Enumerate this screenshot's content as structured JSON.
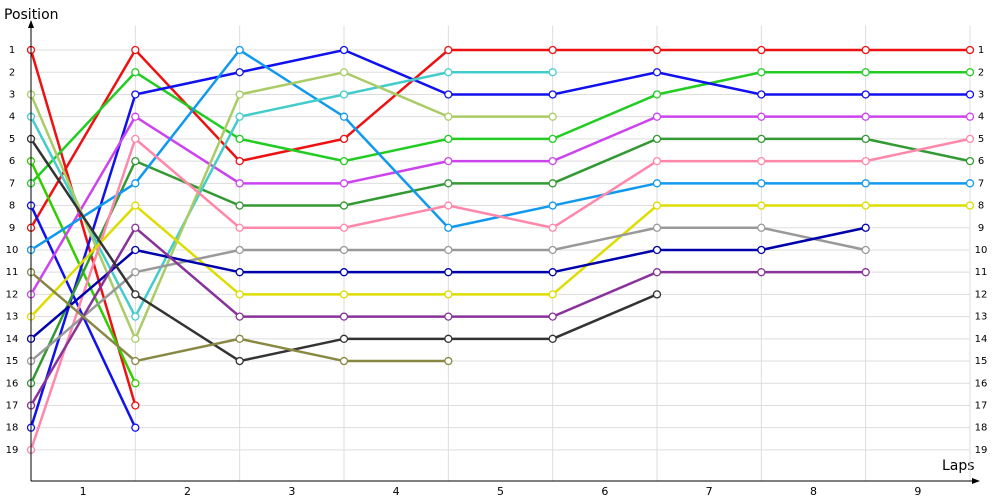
{
  "chart_data": {
    "type": "line",
    "y_title": "Position",
    "x_title": "Laps",
    "x": [
      0,
      1,
      2,
      3,
      4,
      5,
      6,
      7,
      8,
      9
    ],
    "xlim": [
      0,
      9
    ],
    "xticks": [
      {
        "value": 0.5,
        "label": "1"
      },
      {
        "value": 1.5,
        "label": "2"
      },
      {
        "value": 2.5,
        "label": "3"
      },
      {
        "value": 3.5,
        "label": "4"
      },
      {
        "value": 4.5,
        "label": "5"
      },
      {
        "value": 5.5,
        "label": "6"
      },
      {
        "value": 6.5,
        "label": "7"
      },
      {
        "value": 7.5,
        "label": "8"
      },
      {
        "value": 8.5,
        "label": "9"
      }
    ],
    "ylim": [
      20.4,
      -0.1
    ],
    "yticks": [
      1,
      2,
      3,
      4,
      5,
      6,
      7,
      8,
      9,
      10,
      11,
      12,
      13,
      14,
      15,
      16,
      17,
      18,
      19
    ],
    "grid": true,
    "series": [
      {
        "color": "#ee1111",
        "values": [
          9,
          1,
          6,
          5,
          1,
          1,
          1,
          1,
          1,
          1
        ]
      },
      {
        "color": "#ee1111",
        "values": [
          1,
          17,
          null,
          null,
          null,
          null,
          null,
          null,
          null,
          null
        ]
      },
      {
        "color": "#22cc22",
        "values": [
          7,
          2,
          5,
          6,
          5,
          5,
          3,
          2,
          2,
          2
        ]
      },
      {
        "color": "#33cc00",
        "values": [
          6,
          16,
          null,
          null,
          null,
          null,
          null,
          null,
          null,
          null
        ]
      },
      {
        "color": "#1111ee",
        "values": [
          18,
          3,
          2,
          1,
          3,
          3,
          2,
          3,
          3,
          3
        ]
      },
      {
        "color": "#1111ee",
        "values": [
          8,
          18,
          null,
          null,
          null,
          null,
          null,
          null,
          null,
          null
        ]
      },
      {
        "color": "#339933",
        "values": [
          16,
          6,
          8,
          8,
          7,
          7,
          5,
          5,
          5,
          6
        ]
      },
      {
        "color": "#cc44ee",
        "values": [
          12,
          4,
          7,
          7,
          6,
          6,
          4,
          4,
          4,
          4
        ]
      },
      {
        "color": "#1199ee",
        "values": [
          10,
          7,
          1,
          4,
          9,
          8,
          7,
          7,
          7,
          7
        ]
      },
      {
        "color": "#44cccc",
        "values": [
          4,
          13,
          4,
          3,
          2,
          2,
          null,
          null,
          null,
          null
        ]
      },
      {
        "color": "#aacc66",
        "values": [
          3,
          14,
          3,
          2,
          4,
          4,
          null,
          null,
          null,
          null
        ]
      },
      {
        "color": "#ff88aa",
        "values": [
          19,
          5,
          9,
          9,
          8,
          9,
          6,
          6,
          6,
          5
        ]
      },
      {
        "color": "#dddd00",
        "values": [
          13,
          8,
          12,
          12,
          12,
          12,
          8,
          8,
          8,
          8
        ]
      },
      {
        "color": "#999999",
        "values": [
          15,
          11,
          10,
          10,
          10,
          10,
          9,
          9,
          10,
          null
        ]
      },
      {
        "color": "#0000aa",
        "values": [
          14,
          10,
          11,
          11,
          11,
          11,
          10,
          10,
          9,
          null
        ]
      },
      {
        "color": "#883399",
        "values": [
          17,
          9,
          13,
          13,
          13,
          13,
          11,
          11,
          11,
          null
        ]
      },
      {
        "color": "#333333",
        "values": [
          5,
          12,
          15,
          14,
          14,
          14,
          12,
          null,
          null,
          null
        ]
      },
      {
        "color": "#888844",
        "values": [
          11,
          15,
          14,
          15,
          15,
          null,
          null,
          null,
          null,
          null
        ]
      }
    ]
  }
}
